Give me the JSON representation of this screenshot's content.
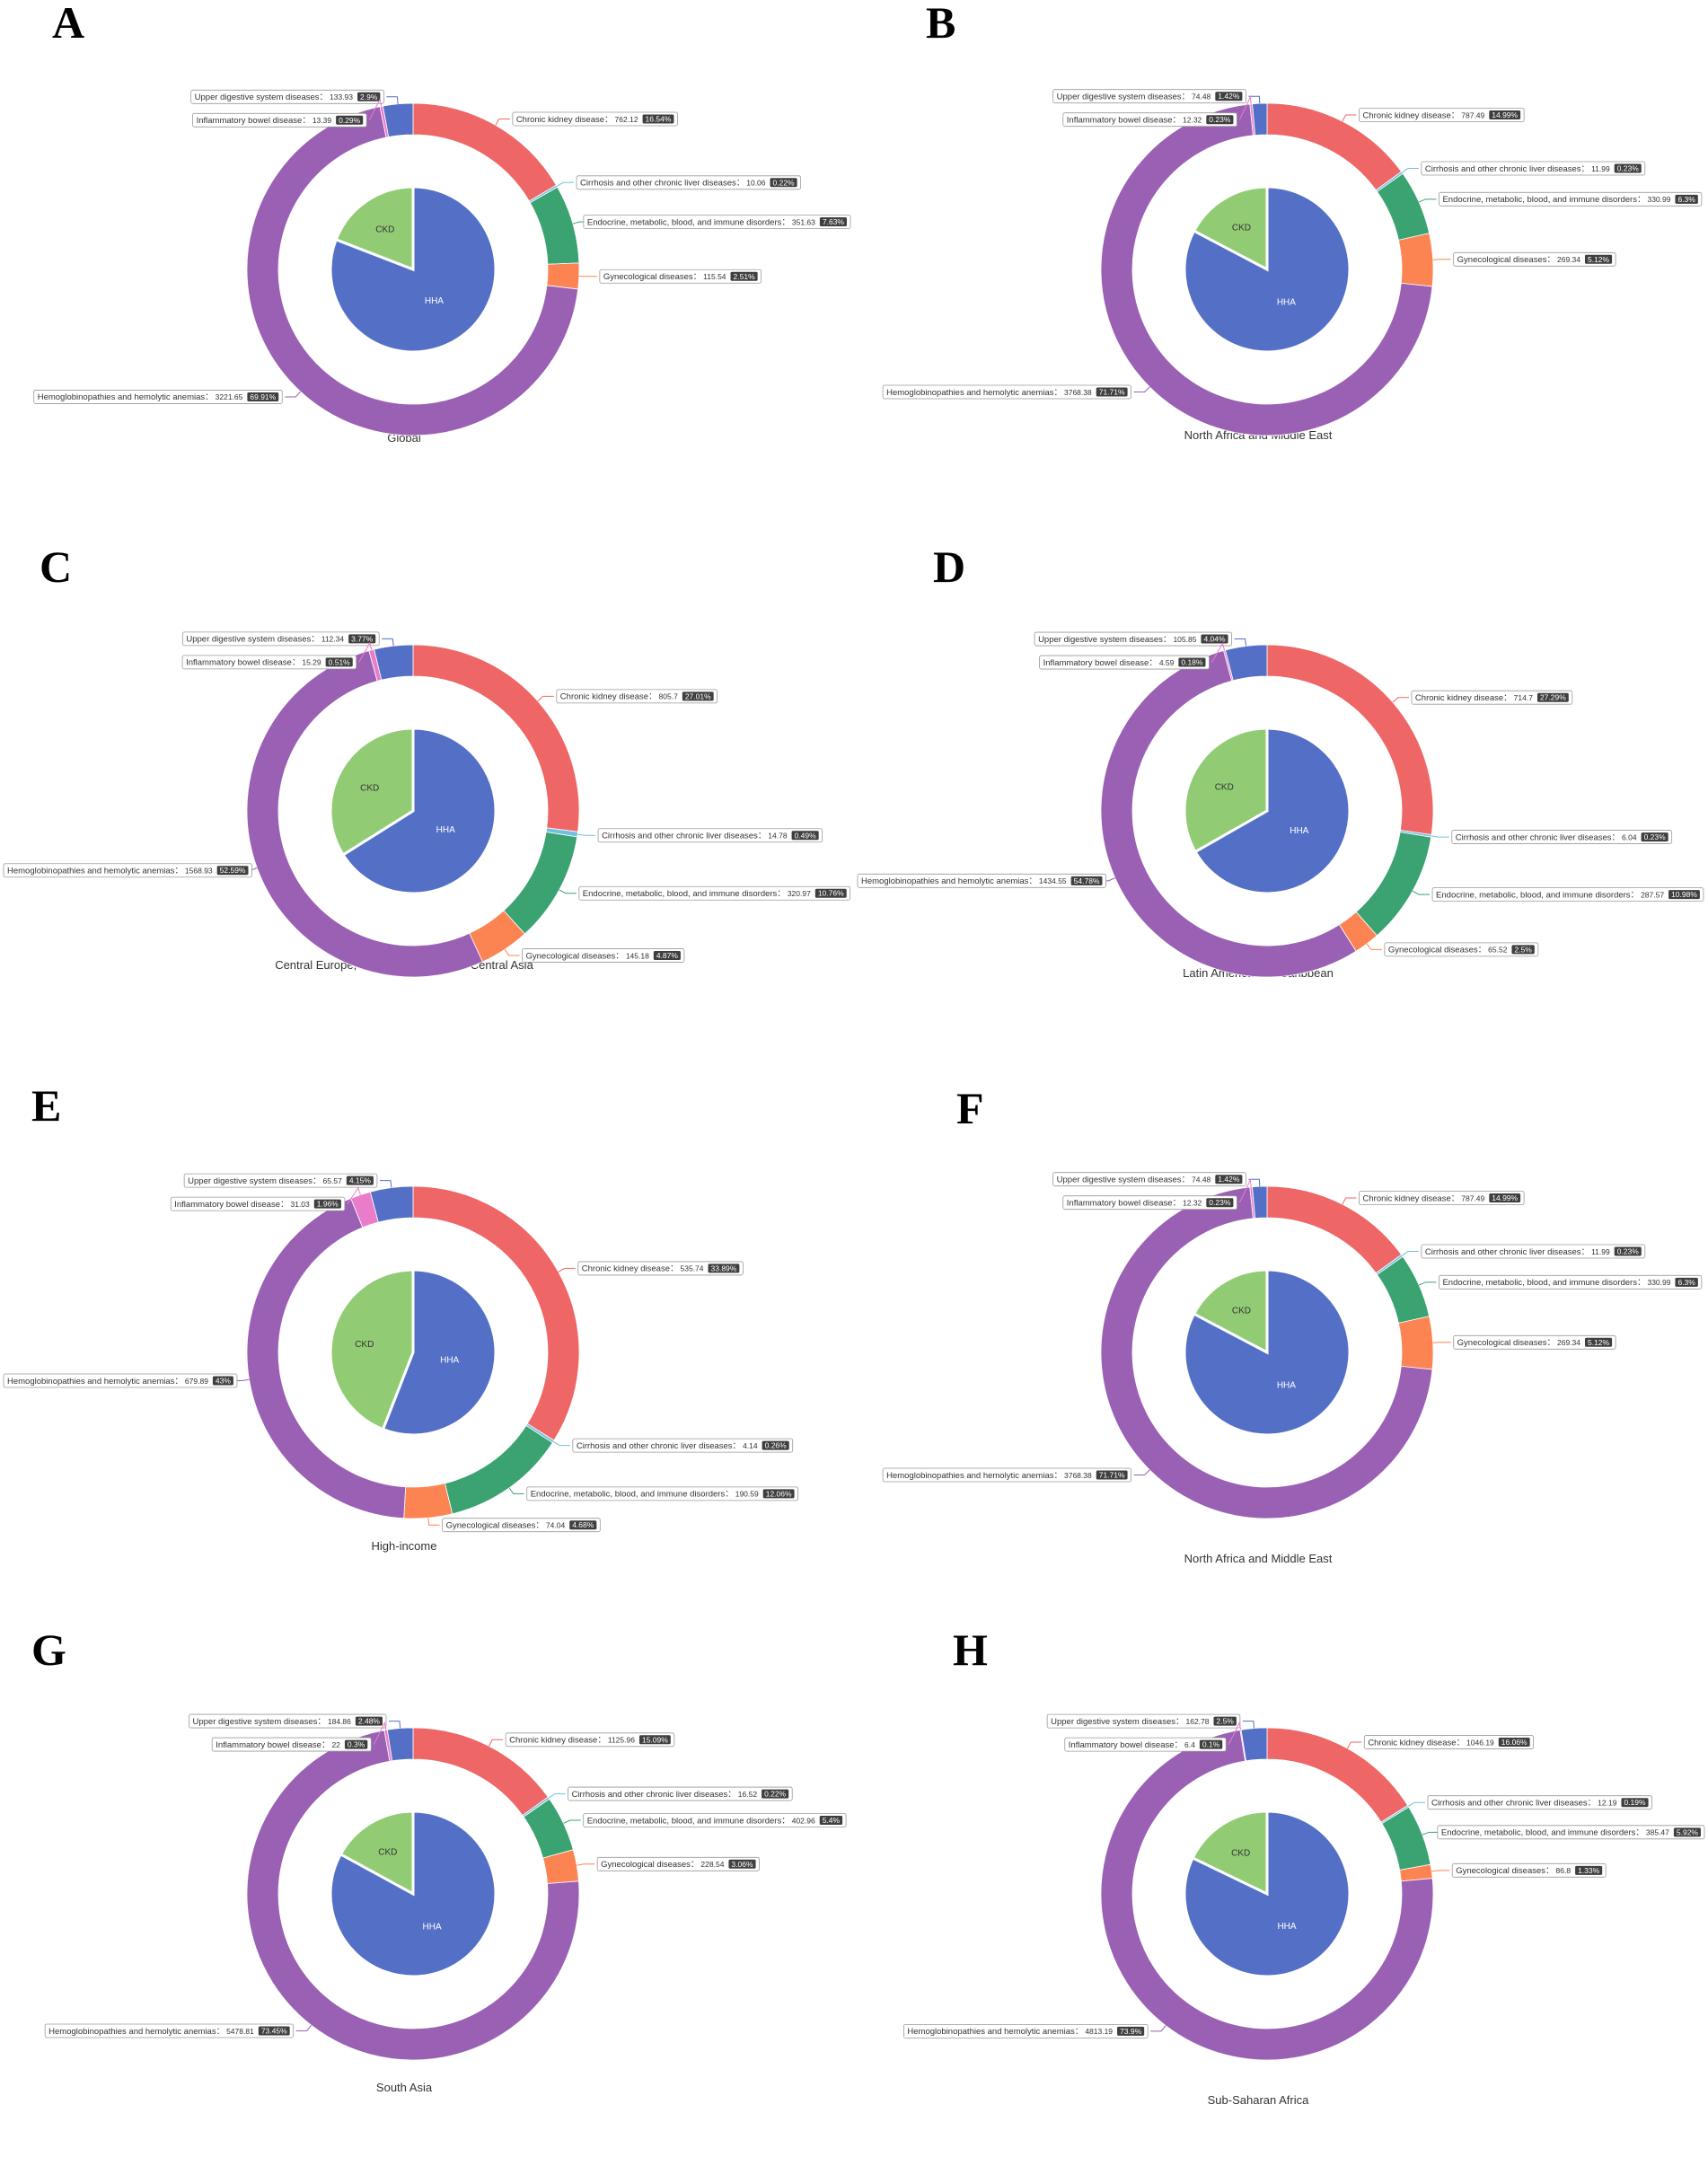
{
  "colors": {
    "Chronic kidney disease": "#ee6666",
    "Cirrhosis and other chronic liver diseases": "#73c0de",
    "Endocrine, metabolic, blood, and immune disorders": "#3ba272",
    "Gynecological diseases": "#fc8452",
    "Hemoglobinopathies and hemolytic anemias": "#9a60b4",
    "Inflammatory bowel disease": "#ea7ccc",
    "Upper digestive system diseases": "#5470c6",
    "CKD": "#91cc75",
    "HHA": "#5470c6"
  },
  "chart_data": [
    {
      "type": "pie",
      "panel": "A",
      "title": "Global",
      "slices": [
        {
          "name": "Chronic kidney disease",
          "value": "762.12",
          "percent": "16.54%"
        },
        {
          "name": "Cirrhosis and other chronic liver diseases",
          "value": "10.06",
          "percent": "0.22%"
        },
        {
          "name": "Endocrine, metabolic, blood, and immune disorders",
          "value": "351.63",
          "percent": "7.63%"
        },
        {
          "name": "Gynecological diseases",
          "value": "115.54",
          "percent": "2.51%"
        },
        {
          "name": "Hemoglobinopathies and hemolytic anemias",
          "value": "3221.65",
          "percent": "69.91%"
        },
        {
          "name": "Inflammatory bowel disease",
          "value": "13.39",
          "percent": "0.29%"
        },
        {
          "name": "Upper digestive system diseases",
          "value": "133.93",
          "percent": "2.9%"
        }
      ],
      "inner": [
        {
          "name": "CKD",
          "value": 16.54
        },
        {
          "name": "HHA",
          "value": 69.91
        }
      ]
    },
    {
      "type": "pie",
      "panel": "B",
      "title": "North Africa and Middle East",
      "slices": [
        {
          "name": "Chronic kidney disease",
          "value": "787.49",
          "percent": "14.99%"
        },
        {
          "name": "Cirrhosis and other chronic liver diseases",
          "value": "11.99",
          "percent": "0.23%"
        },
        {
          "name": "Endocrine, metabolic, blood, and immune disorders",
          "value": "330.99",
          "percent": "6.3%"
        },
        {
          "name": "Gynecological diseases",
          "value": "269.34",
          "percent": "5.12%"
        },
        {
          "name": "Hemoglobinopathies and hemolytic anemias",
          "value": "3768.38",
          "percent": "71.71%"
        },
        {
          "name": "Inflammatory bowel disease",
          "value": "12.32",
          "percent": "0.23%"
        },
        {
          "name": "Upper digestive system diseases",
          "value": "74.48",
          "percent": "1.42%"
        }
      ],
      "inner": [
        {
          "name": "CKD",
          "value": 14.99
        },
        {
          "name": "HHA",
          "value": 71.71
        }
      ]
    },
    {
      "type": "pie",
      "panel": "C",
      "title": "Central Europe, Eastern Europe, and Central Asia",
      "slices": [
        {
          "name": "Chronic kidney disease",
          "value": "805.7",
          "percent": "27.01%"
        },
        {
          "name": "Cirrhosis and other chronic liver diseases",
          "value": "14.78",
          "percent": "0.49%"
        },
        {
          "name": "Endocrine, metabolic, blood, and immune disorders",
          "value": "320.97",
          "percent": "10.76%"
        },
        {
          "name": "Gynecological diseases",
          "value": "145.18",
          "percent": "4.87%"
        },
        {
          "name": "Hemoglobinopathies and hemolytic anemias",
          "value": "1568.93",
          "percent": "52.59%"
        },
        {
          "name": "Inflammatory bowel disease",
          "value": "15.29",
          "percent": "0.51%"
        },
        {
          "name": "Upper digestive system diseases",
          "value": "112.34",
          "percent": "3.77%"
        }
      ],
      "inner": [
        {
          "name": "CKD",
          "value": 27.01
        },
        {
          "name": "HHA",
          "value": 52.59
        }
      ]
    },
    {
      "type": "pie",
      "panel": "D",
      "title": "Latin America and Caribbean",
      "slices": [
        {
          "name": "Chronic kidney disease",
          "value": "714.7",
          "percent": "27.29%"
        },
        {
          "name": "Cirrhosis and other chronic liver diseases",
          "value": "6.04",
          "percent": "0.23%"
        },
        {
          "name": "Endocrine, metabolic, blood, and immune disorders",
          "value": "287.57",
          "percent": "10.98%"
        },
        {
          "name": "Gynecological diseases",
          "value": "65.52",
          "percent": "2.5%"
        },
        {
          "name": "Hemoglobinopathies and hemolytic anemias",
          "value": "1434.55",
          "percent": "54.78%"
        },
        {
          "name": "Inflammatory bowel disease",
          "value": "4.59",
          "percent": "0.18%"
        },
        {
          "name": "Upper digestive system diseases",
          "value": "105.85",
          "percent": "4.04%"
        }
      ],
      "inner": [
        {
          "name": "CKD",
          "value": 27.29
        },
        {
          "name": "HHA",
          "value": 54.78
        }
      ]
    },
    {
      "type": "pie",
      "panel": "E",
      "title": "High-income",
      "slices": [
        {
          "name": "Chronic kidney disease",
          "value": "535.74",
          "percent": "33.89%"
        },
        {
          "name": "Cirrhosis and other chronic liver diseases",
          "value": "4.14",
          "percent": "0.26%"
        },
        {
          "name": "Endocrine, metabolic, blood, and immune disorders",
          "value": "190.59",
          "percent": "12.06%"
        },
        {
          "name": "Gynecological diseases",
          "value": "74.04",
          "percent": "4.68%"
        },
        {
          "name": "Hemoglobinopathies and hemolytic anemias",
          "value": "679.89",
          "percent": "43%"
        },
        {
          "name": "Inflammatory bowel disease",
          "value": "31.03",
          "percent": "1.96%"
        },
        {
          "name": "Upper digestive system diseases",
          "value": "65.57",
          "percent": "4.15%"
        }
      ],
      "inner": [
        {
          "name": "CKD",
          "value": 33.89
        },
        {
          "name": "HHA",
          "value": 43
        }
      ]
    },
    {
      "type": "pie",
      "panel": "F",
      "title": "North Africa and Middle East",
      "slices": [
        {
          "name": "Chronic kidney disease",
          "value": "787.49",
          "percent": "14.99%"
        },
        {
          "name": "Cirrhosis and other chronic liver diseases",
          "value": "11.99",
          "percent": "0.23%"
        },
        {
          "name": "Endocrine, metabolic, blood, and immune disorders",
          "value": "330.99",
          "percent": "6.3%"
        },
        {
          "name": "Gynecological diseases",
          "value": "269.34",
          "percent": "5.12%"
        },
        {
          "name": "Hemoglobinopathies and hemolytic anemias",
          "value": "3768.38",
          "percent": "71.71%"
        },
        {
          "name": "Inflammatory bowel disease",
          "value": "12.32",
          "percent": "0.23%"
        },
        {
          "name": "Upper digestive system diseases",
          "value": "74.48",
          "percent": "1.42%"
        }
      ],
      "inner": [
        {
          "name": "CKD",
          "value": 14.99
        },
        {
          "name": "HHA",
          "value": 71.71
        }
      ]
    },
    {
      "type": "pie",
      "panel": "G",
      "title": "South Asia",
      "slices": [
        {
          "name": "Chronic kidney disease",
          "value": "1125.96",
          "percent": "15.09%"
        },
        {
          "name": "Cirrhosis and other chronic liver diseases",
          "value": "16.52",
          "percent": "0.22%"
        },
        {
          "name": "Endocrine, metabolic, blood, and immune disorders",
          "value": "402.96",
          "percent": "5.4%"
        },
        {
          "name": "Gynecological diseases",
          "value": "228.54",
          "percent": "3.06%"
        },
        {
          "name": "Hemoglobinopathies and hemolytic anemias",
          "value": "5478.81",
          "percent": "73.45%"
        },
        {
          "name": "Inflammatory bowel disease",
          "value": "22",
          "percent": "0.3%"
        },
        {
          "name": "Upper digestive system diseases",
          "value": "184.86",
          "percent": "2.48%"
        }
      ],
      "inner": [
        {
          "name": "CKD",
          "value": 15.09
        },
        {
          "name": "HHA",
          "value": 73.45
        }
      ]
    },
    {
      "type": "pie",
      "panel": "H",
      "title": "Sub-Saharan Africa",
      "slices": [
        {
          "name": "Chronic kidney disease",
          "value": "1046.19",
          "percent": "16.06%"
        },
        {
          "name": "Cirrhosis and other chronic liver diseases",
          "value": "12.19",
          "percent": "0.19%"
        },
        {
          "name": "Endocrine, metabolic, blood, and immune disorders",
          "value": "385.47",
          "percent": "5.92%"
        },
        {
          "name": "Gynecological diseases",
          "value": "86.8",
          "percent": "1.33%"
        },
        {
          "name": "Hemoglobinopathies and hemolytic anemias",
          "value": "4813.19",
          "percent": "73.9%"
        },
        {
          "name": "Inflammatory bowel disease",
          "value": "6.4",
          "percent": "0.1%"
        },
        {
          "name": "Upper digestive system diseases",
          "value": "162.78",
          "percent": "2.5%"
        }
      ],
      "inner": [
        {
          "name": "CKD",
          "value": 16.06
        },
        {
          "name": "HHA",
          "value": 73.9
        }
      ]
    }
  ]
}
